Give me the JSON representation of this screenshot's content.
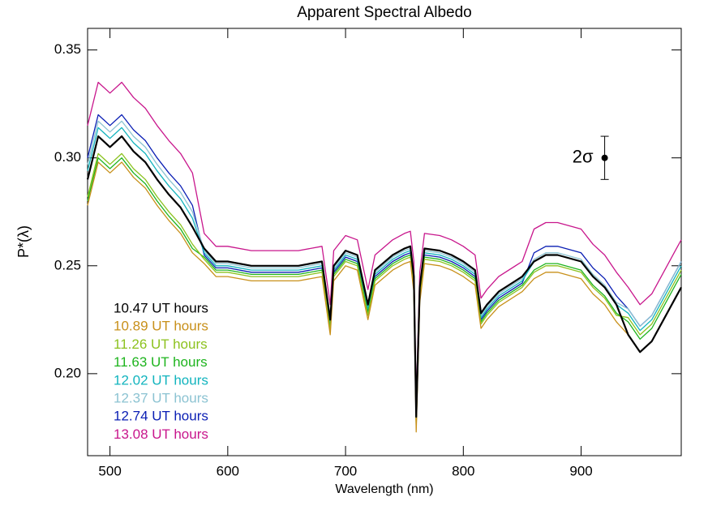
{
  "chart_data": {
    "type": "line",
    "title": "Apparent Spectral Albedo",
    "x_label": "Wavelength (nm)",
    "y_label": "P*(λ)",
    "x": [
      481,
      490,
      500,
      510,
      520,
      530,
      540,
      550,
      560,
      570,
      580,
      590,
      600,
      620,
      640,
      660,
      680,
      687,
      690,
      700,
      710,
      719,
      725,
      740,
      750,
      755,
      758,
      760,
      763,
      767,
      780,
      790,
      800,
      810,
      815,
      820,
      830,
      850,
      860,
      870,
      880,
      900,
      910,
      920,
      930,
      940,
      950,
      960,
      970,
      980,
      985
    ],
    "series": [
      {
        "name": "10.47 UT hours",
        "color": "#000000",
        "values": [
          0.29,
          0.31,
          0.305,
          0.31,
          0.303,
          0.298,
          0.29,
          0.283,
          0.277,
          0.268,
          0.258,
          0.252,
          0.252,
          0.25,
          0.25,
          0.25,
          0.252,
          0.225,
          0.25,
          0.257,
          0.255,
          0.232,
          0.248,
          0.255,
          0.258,
          0.259,
          0.245,
          0.18,
          0.24,
          0.258,
          0.257,
          0.255,
          0.252,
          0.248,
          0.228,
          0.232,
          0.238,
          0.245,
          0.252,
          0.255,
          0.255,
          0.252,
          0.245,
          0.24,
          0.232,
          0.218,
          0.21,
          0.215,
          0.225,
          0.235,
          0.24
        ]
      },
      {
        "name": "10.89 UT hours",
        "color": "#c8901a",
        "values": [
          0.278,
          0.298,
          0.293,
          0.298,
          0.291,
          0.286,
          0.278,
          0.271,
          0.265,
          0.256,
          0.251,
          0.245,
          0.245,
          0.243,
          0.243,
          0.243,
          0.245,
          0.218,
          0.243,
          0.25,
          0.248,
          0.225,
          0.241,
          0.248,
          0.251,
          0.252,
          0.238,
          0.173,
          0.233,
          0.251,
          0.25,
          0.248,
          0.245,
          0.241,
          0.221,
          0.225,
          0.231,
          0.238,
          0.244,
          0.247,
          0.247,
          0.244,
          0.237,
          0.232,
          0.224,
          0.218,
          0.21,
          0.215,
          0.225,
          0.235,
          0.24
        ]
      },
      {
        "name": "11.26 UT hours",
        "color": "#8cc21e",
        "values": [
          0.282,
          0.302,
          0.297,
          0.302,
          0.295,
          0.29,
          0.282,
          0.275,
          0.269,
          0.26,
          0.253,
          0.247,
          0.247,
          0.245,
          0.245,
          0.245,
          0.247,
          0.22,
          0.245,
          0.252,
          0.25,
          0.227,
          0.243,
          0.25,
          0.253,
          0.254,
          0.24,
          0.175,
          0.235,
          0.253,
          0.252,
          0.25,
          0.247,
          0.243,
          0.223,
          0.227,
          0.233,
          0.24,
          0.247,
          0.25,
          0.25,
          0.247,
          0.24,
          0.235,
          0.227,
          0.226,
          0.218,
          0.223,
          0.233,
          0.243,
          0.248
        ]
      },
      {
        "name": "11.63 UT hours",
        "color": "#1eb41e",
        "values": [
          0.28,
          0.3,
          0.295,
          0.3,
          0.293,
          0.288,
          0.28,
          0.273,
          0.267,
          0.258,
          0.254,
          0.248,
          0.248,
          0.246,
          0.246,
          0.246,
          0.248,
          0.221,
          0.246,
          0.253,
          0.251,
          0.228,
          0.244,
          0.251,
          0.254,
          0.255,
          0.241,
          0.176,
          0.236,
          0.254,
          0.253,
          0.251,
          0.248,
          0.244,
          0.224,
          0.228,
          0.234,
          0.241,
          0.248,
          0.251,
          0.251,
          0.248,
          0.241,
          0.236,
          0.228,
          0.224,
          0.216,
          0.221,
          0.231,
          0.241,
          0.246
        ]
      },
      {
        "name": "12.02 UT hours",
        "color": "#12b4be",
        "values": [
          0.294,
          0.314,
          0.309,
          0.314,
          0.307,
          0.302,
          0.294,
          0.287,
          0.281,
          0.272,
          0.256,
          0.25,
          0.25,
          0.248,
          0.248,
          0.248,
          0.25,
          0.223,
          0.248,
          0.255,
          0.253,
          0.23,
          0.246,
          0.253,
          0.256,
          0.257,
          0.243,
          0.178,
          0.238,
          0.256,
          0.255,
          0.253,
          0.25,
          0.246,
          0.226,
          0.23,
          0.236,
          0.243,
          0.252,
          0.255,
          0.255,
          0.252,
          0.245,
          0.24,
          0.232,
          0.228,
          0.22,
          0.225,
          0.235,
          0.245,
          0.25
        ]
      },
      {
        "name": "12.37 UT hours",
        "color": "#8cc3d2",
        "values": [
          0.297,
          0.317,
          0.312,
          0.317,
          0.31,
          0.305,
          0.297,
          0.29,
          0.284,
          0.275,
          0.257,
          0.251,
          0.251,
          0.249,
          0.249,
          0.249,
          0.251,
          0.224,
          0.249,
          0.256,
          0.254,
          0.231,
          0.247,
          0.254,
          0.257,
          0.258,
          0.244,
          0.179,
          0.239,
          0.257,
          0.256,
          0.254,
          0.251,
          0.247,
          0.227,
          0.231,
          0.237,
          0.244,
          0.253,
          0.256,
          0.256,
          0.253,
          0.246,
          0.241,
          0.233,
          0.23,
          0.222,
          0.227,
          0.237,
          0.247,
          0.252
        ]
      },
      {
        "name": "12.74 UT hours",
        "color": "#0a1eb4",
        "values": [
          0.3,
          0.32,
          0.315,
          0.32,
          0.313,
          0.308,
          0.3,
          0.293,
          0.287,
          0.278,
          0.255,
          0.249,
          0.249,
          0.247,
          0.247,
          0.247,
          0.249,
          0.222,
          0.247,
          0.254,
          0.252,
          0.229,
          0.245,
          0.252,
          0.255,
          0.256,
          0.242,
          0.177,
          0.237,
          0.255,
          0.254,
          0.252,
          0.249,
          0.245,
          0.225,
          0.229,
          0.235,
          0.242,
          0.256,
          0.259,
          0.259,
          0.256,
          0.249,
          0.244,
          0.236,
          0.23,
          0.222,
          0.227,
          0.237,
          0.247,
          0.252
        ]
      },
      {
        "name": "13.08 UT hours",
        "color": "#c8168c",
        "values": [
          0.315,
          0.335,
          0.33,
          0.335,
          0.328,
          0.323,
          0.315,
          0.308,
          0.302,
          0.293,
          0.265,
          0.259,
          0.259,
          0.257,
          0.257,
          0.257,
          0.259,
          0.232,
          0.257,
          0.264,
          0.262,
          0.239,
          0.255,
          0.262,
          0.265,
          0.266,
          0.252,
          0.187,
          0.247,
          0.265,
          0.264,
          0.262,
          0.259,
          0.255,
          0.235,
          0.239,
          0.245,
          0.252,
          0.267,
          0.27,
          0.27,
          0.267,
          0.26,
          0.255,
          0.247,
          0.24,
          0.232,
          0.237,
          0.247,
          0.257,
          0.262
        ]
      }
    ],
    "xlim": [
      481,
      985
    ],
    "ylim": [
      0.162,
      0.36
    ],
    "xticks": [
      500,
      600,
      700,
      800,
      900
    ],
    "yticks": [
      {
        "value": 0.2,
        "label": "0.20"
      },
      0.25,
      {
        "value": 0.3,
        "label": "0.30"
      },
      0.35
    ],
    "legend": "lower left",
    "annotations": [
      {
        "text": "2σ",
        "x": 920,
        "y": 0.3,
        "error": 0.01
      }
    ]
  }
}
